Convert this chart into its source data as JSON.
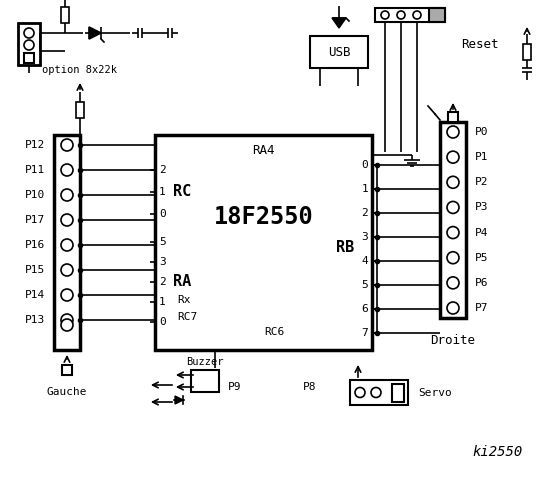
{
  "title": "ki2550",
  "bg_color": "#ffffff",
  "line_color": "#000000",
  "chip_label": "18F2550",
  "chip_sublabel": "RA4",
  "rc_label": "RC",
  "ra_label": "RA",
  "rb_label": "RB",
  "rc_pins": [
    "2",
    "1",
    "0"
  ],
  "ra_pins": [
    "5",
    "3",
    "2",
    "1",
    "0"
  ],
  "rb_pins": [
    "0",
    "1",
    "2",
    "3",
    "4",
    "5",
    "6",
    "7"
  ],
  "rx_label": "Rx",
  "rc7_label": "RC7",
  "rc6_label": "RC6",
  "left_labels": [
    "P12",
    "P11",
    "P10",
    "P17",
    "P16",
    "P15",
    "P14",
    "P13"
  ],
  "right_labels": [
    "P0",
    "P1",
    "P2",
    "P3",
    "P4",
    "P5",
    "P6",
    "P7"
  ],
  "gauche_label": "Gauche",
  "droite_label": "Droite",
  "option_label": "option 8x22k",
  "usb_label": "USB",
  "reset_label": "Reset",
  "buzzer_label": "Buzzer",
  "p9_label": "P9",
  "p8_label": "P8",
  "servo_label": "Servo"
}
